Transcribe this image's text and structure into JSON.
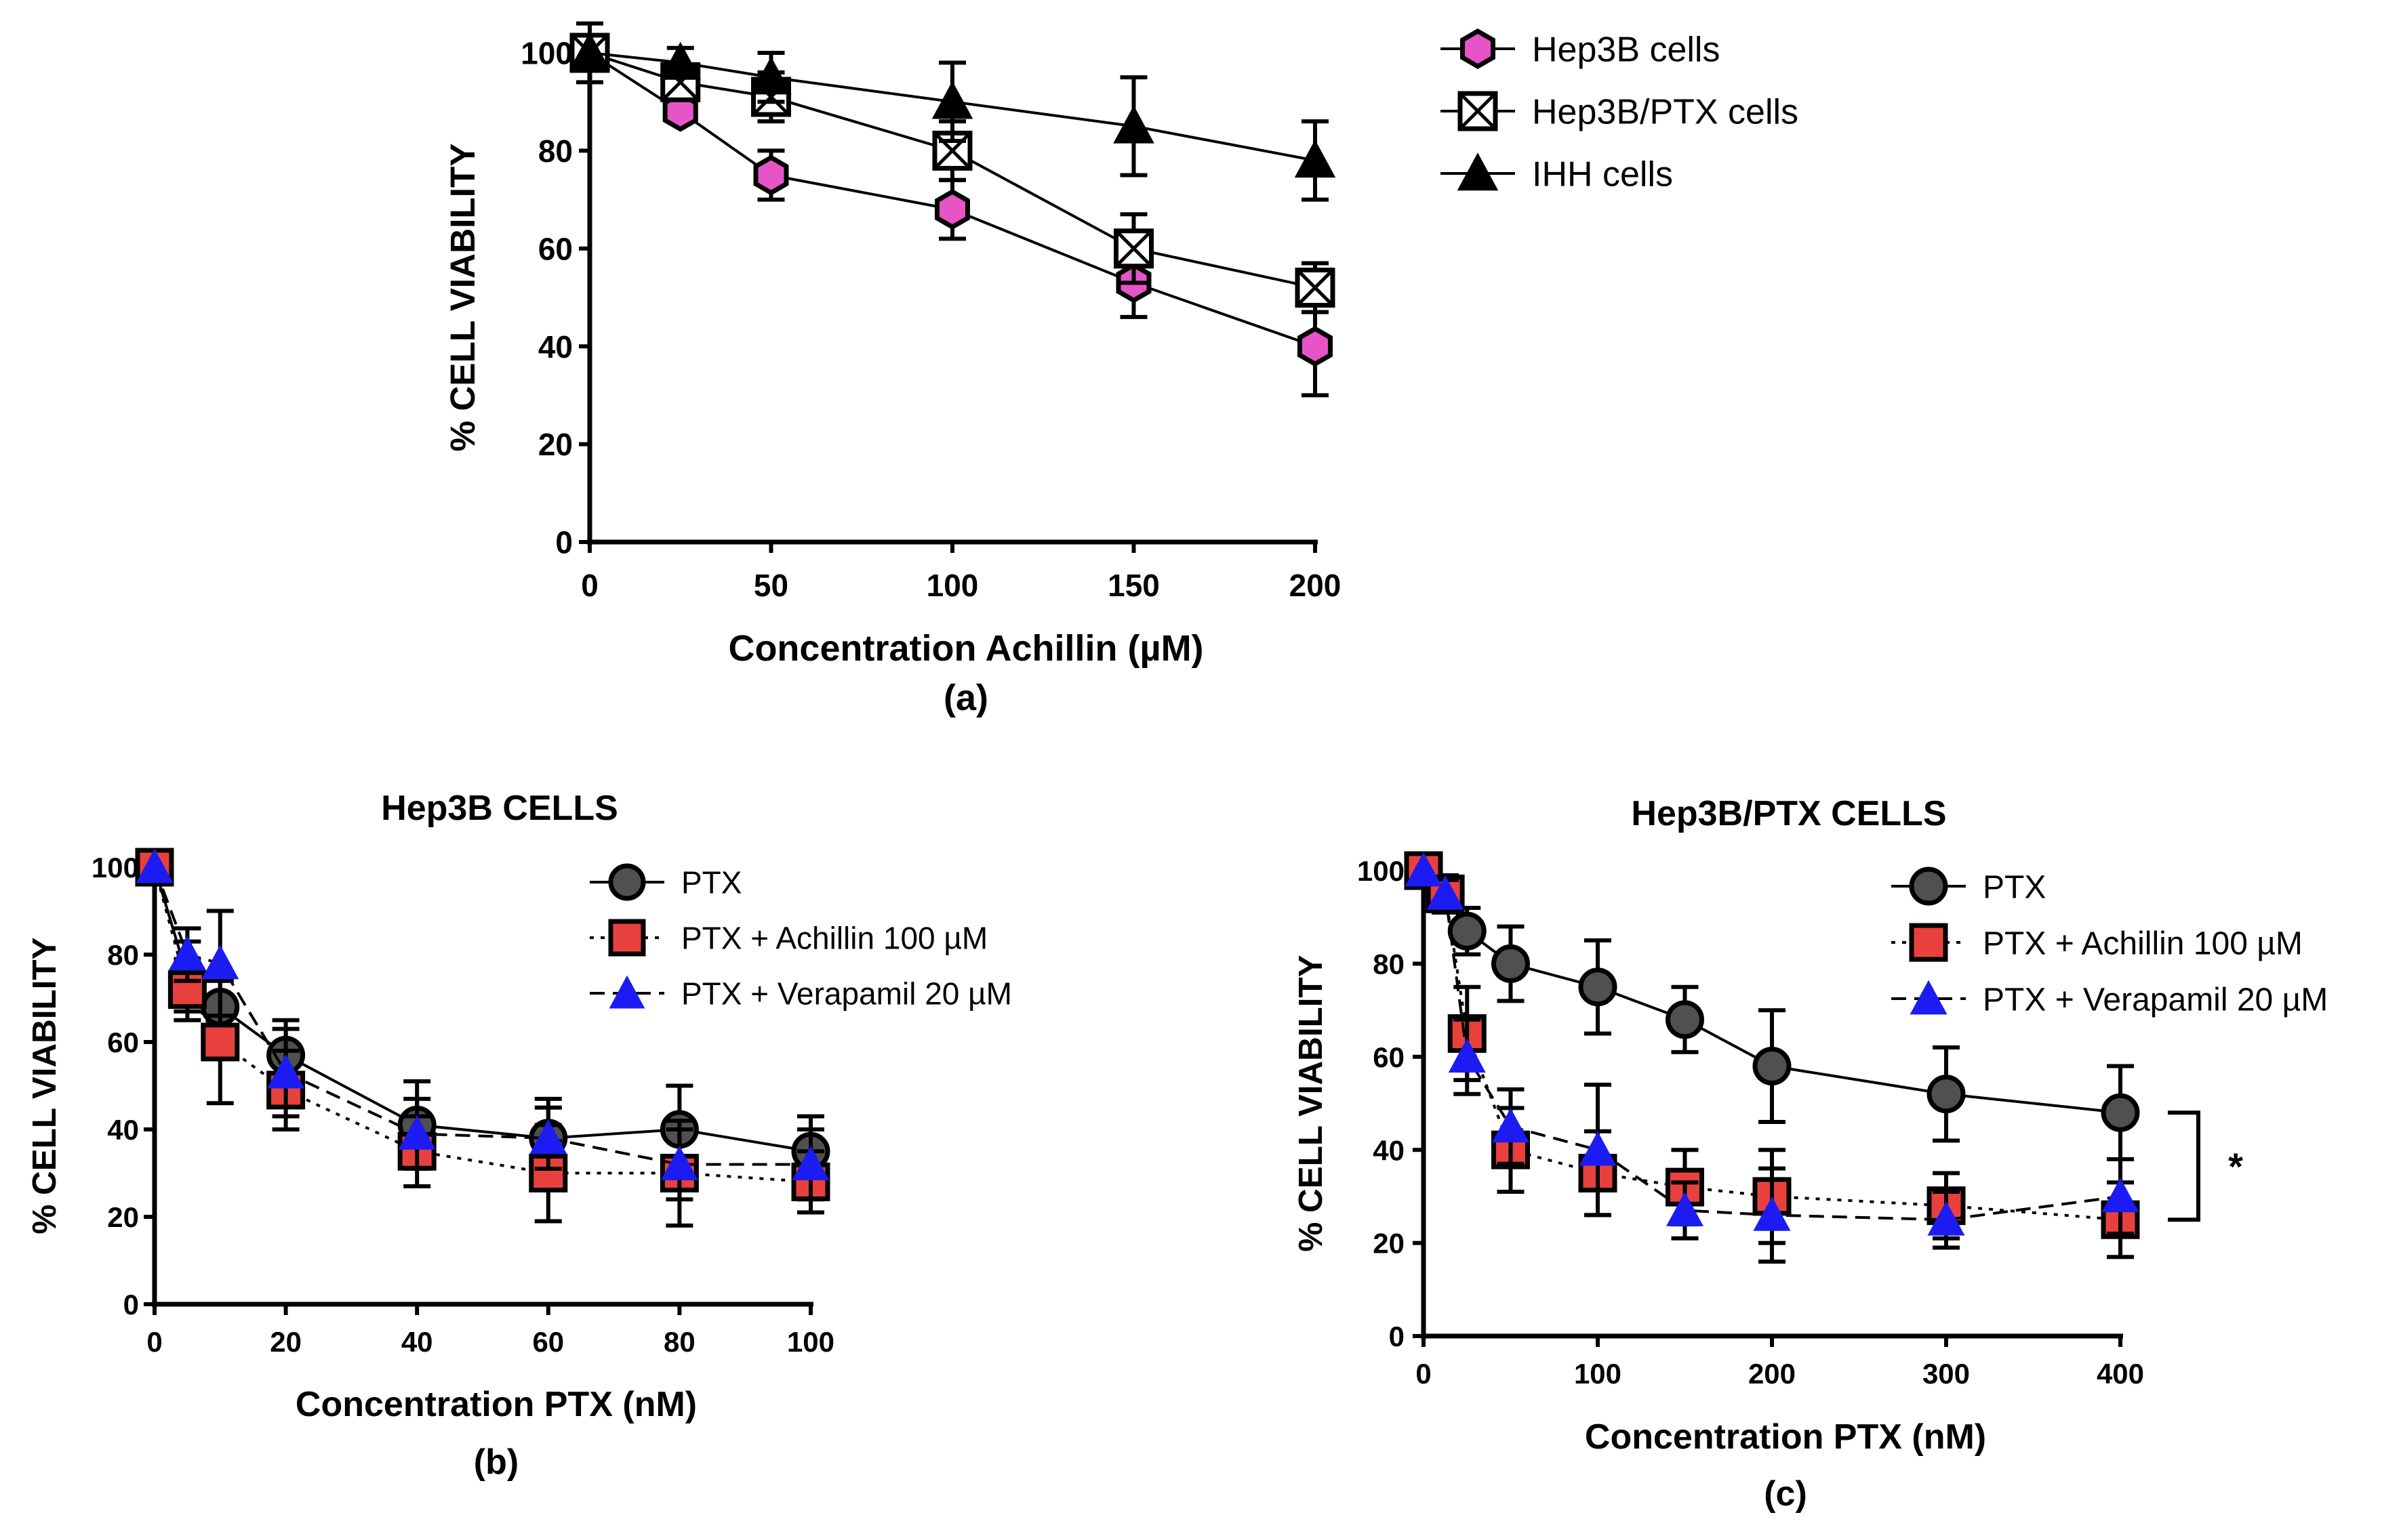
{
  "chart_data": [
    {
      "panel_id": "a",
      "type": "line",
      "title": "",
      "caption": "(a)",
      "xlabel": "Concentration Achillin (µM)",
      "ylabel": "% CELL VIABILITY",
      "xlim": [
        0,
        200
      ],
      "ylim": [
        0,
        100
      ],
      "x_ticks": [
        "0",
        "50",
        "100",
        "150",
        "200"
      ],
      "y_ticks": [
        "0",
        "20",
        "40",
        "60",
        "80",
        "100"
      ],
      "legend_position": "top-right",
      "series": [
        {
          "name": "Hep3B cells",
          "marker": "hexagon",
          "color": "#e754c8",
          "line": "solid",
          "x": [
            0,
            25,
            50,
            100,
            150,
            200
          ],
          "values": [
            100,
            88,
            75,
            68,
            53,
            40
          ],
          "error": [
            0,
            2,
            5,
            6,
            7,
            10
          ]
        },
        {
          "name": "Hep3B/PTX cells",
          "marker": "boxx",
          "color": "#ffffff",
          "line": "solid",
          "x": [
            0,
            25,
            50,
            100,
            150,
            200
          ],
          "values": [
            100,
            94,
            91,
            80,
            60,
            52
          ],
          "error": [
            0,
            3,
            5,
            6,
            7,
            5
          ]
        },
        {
          "name": "IHH cells",
          "marker": "triangle",
          "color": "#000000",
          "line": "solid",
          "x": [
            0,
            25,
            50,
            100,
            150,
            200
          ],
          "values": [
            100,
            98,
            95,
            90,
            85,
            78
          ],
          "error": [
            6,
            3,
            5,
            8,
            10,
            8
          ]
        }
      ]
    },
    {
      "panel_id": "b",
      "type": "line",
      "title": "Hep3B CELLS",
      "caption": "(b)",
      "xlabel": "Concentration PTX (nM)",
      "ylabel": "% CELL VIABILITY",
      "xlim": [
        0,
        100
      ],
      "ylim": [
        0,
        100
      ],
      "x_ticks": [
        "0",
        "20",
        "40",
        "60",
        "80",
        "100"
      ],
      "y_ticks": [
        "0",
        "20",
        "40",
        "60",
        "80",
        "100"
      ],
      "legend_position": "top-right",
      "series": [
        {
          "name": "PTX",
          "marker": "circle",
          "color": "#505050",
          "line": "solid",
          "x": [
            0,
            5,
            10,
            20,
            40,
            60,
            80,
            100
          ],
          "values": [
            100,
            75,
            68,
            57,
            41,
            38,
            40,
            35
          ],
          "error": [
            0,
            8,
            7,
            8,
            10,
            9,
            10,
            8
          ]
        },
        {
          "name": "PTX + Achillin 100 µM",
          "marker": "square",
          "color": "#e8413d",
          "line": "dotted",
          "x": [
            0,
            5,
            10,
            20,
            40,
            60,
            80,
            100
          ],
          "values": [
            100,
            72,
            60,
            49,
            35,
            30,
            30,
            28
          ],
          "error": [
            0,
            7,
            14,
            9,
            8,
            11,
            12,
            7
          ]
        },
        {
          "name": "PTX + Verapamil 20 µM",
          "marker": "triangle",
          "color": "#1c1cf2",
          "line": "dashed",
          "x": [
            0,
            5,
            10,
            20,
            40,
            60,
            80,
            100
          ],
          "values": [
            100,
            80,
            78,
            53,
            39,
            38,
            32,
            32
          ],
          "error": [
            0,
            6,
            12,
            10,
            8,
            7,
            8,
            8
          ]
        }
      ]
    },
    {
      "panel_id": "c",
      "type": "line",
      "title": "Hep3B/PTX CELLS",
      "caption": "(c)",
      "xlabel": "Concentration PTX (nM)",
      "ylabel": "% CELL VIABILITY",
      "xlim": [
        0,
        400
      ],
      "ylim": [
        0,
        100
      ],
      "x_ticks": [
        "0",
        "100",
        "200",
        "300",
        "400"
      ],
      "y_ticks": [
        "0",
        "20",
        "40",
        "60",
        "80",
        "100"
      ],
      "legend_position": "top-right",
      "annotation": "*",
      "series": [
        {
          "name": "PTX",
          "marker": "circle",
          "color": "#505050",
          "line": "solid",
          "x": [
            0,
            12.5,
            25,
            50,
            100,
            150,
            200,
            300,
            400
          ],
          "values": [
            100,
            95,
            87,
            80,
            75,
            68,
            58,
            52,
            48
          ],
          "error": [
            0,
            3,
            5,
            8,
            10,
            7,
            12,
            10,
            10
          ]
        },
        {
          "name": "PTX + Achillin 100 µM",
          "marker": "square",
          "color": "#e8413d",
          "line": "dotted",
          "x": [
            0,
            12.5,
            25,
            50,
            100,
            150,
            200,
            300,
            400
          ],
          "values": [
            100,
            95,
            65,
            40,
            35,
            32,
            30,
            28,
            25
          ],
          "error": [
            0,
            4,
            10,
            9,
            9,
            8,
            10,
            7,
            8
          ]
        },
        {
          "name": "PTX + Verapamil 20 µM",
          "marker": "triangle",
          "color": "#1c1cf2",
          "line": "dashed",
          "x": [
            0,
            12.5,
            25,
            50,
            100,
            150,
            200,
            300,
            400
          ],
          "values": [
            100,
            95,
            60,
            45,
            40,
            27,
            26,
            25,
            30
          ],
          "error": [
            0,
            3,
            8,
            8,
            14,
            6,
            10,
            6,
            8
          ]
        }
      ]
    }
  ]
}
